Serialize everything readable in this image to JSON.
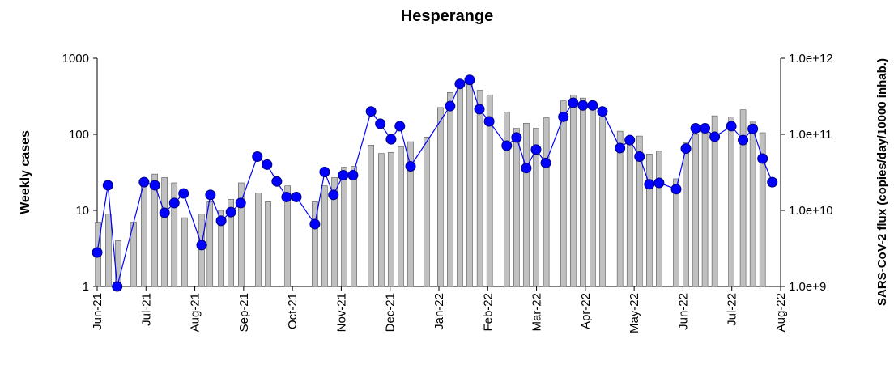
{
  "chart_data": {
    "type": "combo",
    "title": "Hesperange",
    "ylabel": "Weekly cases",
    "y2label": "SARS-CoV-2 flux (copies/day/10000 inhab.)",
    "xlim": [
      0,
      14
    ],
    "xticks": [
      {
        "value": 0,
        "label": "Jun-21"
      },
      {
        "value": 1,
        "label": "Jul-21"
      },
      {
        "value": 2,
        "label": "Aug-21"
      },
      {
        "value": 3,
        "label": "Sep-21"
      },
      {
        "value": 4,
        "label": "Oct-21"
      },
      {
        "value": 5,
        "label": "Nov-21"
      },
      {
        "value": 6,
        "label": "Dec-21"
      },
      {
        "value": 7,
        "label": "Jan-22"
      },
      {
        "value": 8,
        "label": "Feb-22"
      },
      {
        "value": 9,
        "label": "Mar-22"
      },
      {
        "value": 10,
        "label": "Apr-22"
      },
      {
        "value": 11,
        "label": "May-22"
      },
      {
        "value": 12,
        "label": "Jun-22"
      },
      {
        "value": 13,
        "label": "Jul-22"
      },
      {
        "value": 14,
        "label": "Aug-22"
      }
    ],
    "ylim": [
      1,
      1000
    ],
    "yticks": [
      1,
      10,
      100,
      1000
    ],
    "yscale": "log",
    "y2lim": [
      1000000000,
      1000000000000
    ],
    "y2scale": "log",
    "y2ticks": [
      {
        "value": 1000000000,
        "label": "1.0e+9"
      },
      {
        "value": 10000000000,
        "label": "1.0e+10"
      },
      {
        "value": 100000000000,
        "label": "1.0e+11"
      },
      {
        "value": 1000000000000,
        "label": "1.0e+12"
      }
    ],
    "series": [
      {
        "type": "bar",
        "axis": "y",
        "color": "#c0c0c0",
        "x": [
          0.02,
          0.23,
          0.43,
          0.75,
          0.96,
          1.18,
          1.38,
          1.58,
          1.79,
          2.14,
          2.31,
          2.54,
          2.74,
          2.95,
          3.3,
          3.5,
          3.9,
          4.46,
          4.66,
          4.86,
          5.06,
          5.26,
          5.61,
          5.82,
          6.02,
          6.22,
          6.42,
          6.75,
          7.03,
          7.23,
          7.43,
          7.63,
          7.84,
          8.04,
          8.39,
          8.59,
          8.79,
          8.99,
          9.2,
          9.55,
          9.75,
          9.95,
          10.15,
          10.35,
          10.71,
          10.91,
          11.11,
          11.31,
          11.51,
          11.86,
          12.06,
          12.26,
          12.45,
          12.65,
          12.99,
          13.23,
          13.43,
          13.63
        ],
        "values": [
          7,
          9,
          4,
          7,
          22,
          30,
          27,
          23,
          8,
          9,
          13,
          10,
          14,
          23,
          17,
          13,
          21,
          13,
          21,
          27,
          37,
          38,
          72,
          56,
          58,
          69,
          80,
          92,
          225,
          355,
          400,
          450,
          380,
          330,
          195,
          120,
          140,
          120,
          165,
          275,
          330,
          300,
          270,
          170,
          110,
          90,
          95,
          55,
          60,
          26,
          78,
          100,
          130,
          175,
          170,
          210,
          145,
          105
        ]
      },
      {
        "type": "line",
        "axis": "y2",
        "color": "#0000ff",
        "x": [
          0.0,
          0.22,
          0.41,
          0.96,
          1.18,
          1.38,
          1.58,
          1.77,
          2.14,
          2.32,
          2.54,
          2.74,
          2.94,
          3.28,
          3.48,
          3.68,
          3.88,
          4.08,
          4.46,
          4.66,
          4.84,
          5.04,
          5.24,
          5.61,
          5.8,
          6.02,
          6.2,
          6.42,
          7.23,
          7.43,
          7.63,
          7.83,
          8.03,
          8.39,
          8.59,
          8.79,
          8.99,
          9.19,
          9.55,
          9.75,
          9.95,
          10.15,
          10.35,
          10.71,
          10.91,
          11.11,
          11.31,
          11.51,
          11.86,
          12.06,
          12.26,
          12.45,
          12.65,
          12.99,
          13.23,
          13.43,
          13.63,
          13.83
        ],
        "values": [
          2800000000,
          21400000000,
          1000000000,
          23500000000,
          21400000000,
          9300000000,
          12500000000,
          16700000000,
          3500000000,
          16000000000,
          7300000000,
          9500000000,
          12500000000,
          51000000000,
          40000000000,
          24000000000,
          15000000000,
          15000000000,
          6600000000,
          32000000000,
          16000000000,
          29000000000,
          29000000000,
          200000000000,
          138000000000,
          86000000000,
          128000000000,
          38000000000,
          235000000000,
          460000000000,
          520000000000,
          214000000000,
          148000000000,
          71000000000,
          91000000000,
          36000000000,
          63000000000,
          42000000000,
          170000000000,
          260000000000,
          240000000000,
          240000000000,
          200000000000,
          66000000000,
          84000000000,
          51000000000,
          22000000000,
          23000000000,
          19000000000,
          65000000000,
          120000000000,
          120000000000,
          93000000000,
          128000000000,
          84000000000,
          118000000000,
          48000000000,
          23500000000
        ]
      }
    ]
  }
}
